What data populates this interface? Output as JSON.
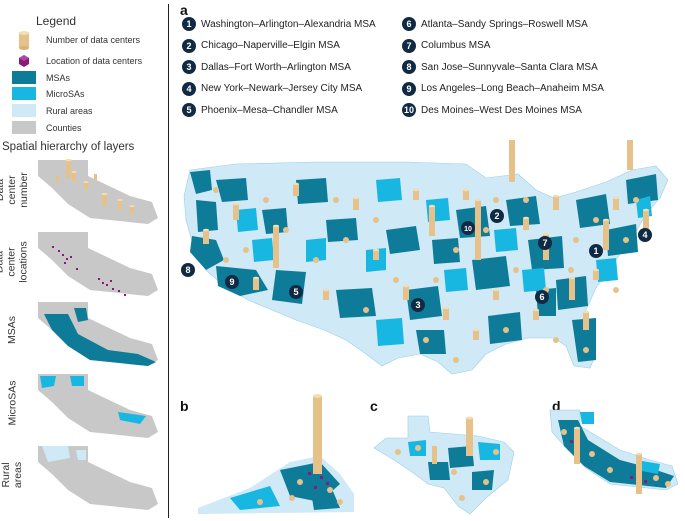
{
  "legend": {
    "title": "Legend",
    "items": [
      {
        "label": "Number of data centers",
        "symbol": "cylinder",
        "color": "#e6c28a"
      },
      {
        "label": "Location of data centers",
        "symbol": "marker",
        "color": "#8a1a7a"
      },
      {
        "label": "MSAs",
        "symbol": "swatch",
        "color": "#0e7c98"
      },
      {
        "label": "MicroSAs",
        "symbol": "swatch",
        "color": "#17b7e2"
      },
      {
        "label": "Rural areas",
        "symbol": "swatch",
        "color": "#cfe9f7"
      },
      {
        "label": "Counties",
        "symbol": "swatch",
        "color": "#c8c8c8"
      }
    ]
  },
  "hierarchy": {
    "title": "Spatial hierarchy of layers",
    "rows": [
      {
        "label": "Data\ncenter\nnumber"
      },
      {
        "label": "Data\ncenter\nlocations"
      },
      {
        "label": "MSAs"
      },
      {
        "label": "MicroSAs"
      },
      {
        "label": "Rural\nareas"
      }
    ]
  },
  "panels": {
    "a": "a",
    "b": "b",
    "c": "c",
    "d": "d"
  },
  "msa_list": [
    {
      "num": "1",
      "name": "Washington–Arlington–Alexandria MSA"
    },
    {
      "num": "2",
      "name": "Chicago–Naperville–Elgin MSA"
    },
    {
      "num": "3",
      "name": "Dallas–Fort Worth–Arlington MSA"
    },
    {
      "num": "4",
      "name": "New York–Newark–Jersey City MSA"
    },
    {
      "num": "5",
      "name": "Phoenix–Mesa–Chandler MSA"
    },
    {
      "num": "6",
      "name": "Atlanta–Sandy Springs–Roswell MSA"
    },
    {
      "num": "7",
      "name": "Columbus MSA"
    },
    {
      "num": "8",
      "name": "San Jose–Sunnyvale–Santa Clara MSA"
    },
    {
      "num": "9",
      "name": "Los Angeles–Long Beach–Anaheim MSA"
    },
    {
      "num": "10",
      "name": "Des Moines–West Des Moines MSA"
    }
  ],
  "colors": {
    "msa": "#0e7c98",
    "micro": "#17b7e2",
    "rural": "#cfe9f7",
    "county": "#c8c8c8",
    "cylinder": "#e6c28a",
    "cylinder_top": "#f3ddb5",
    "marker": "#8a1a7a",
    "badge": "#112a44"
  }
}
